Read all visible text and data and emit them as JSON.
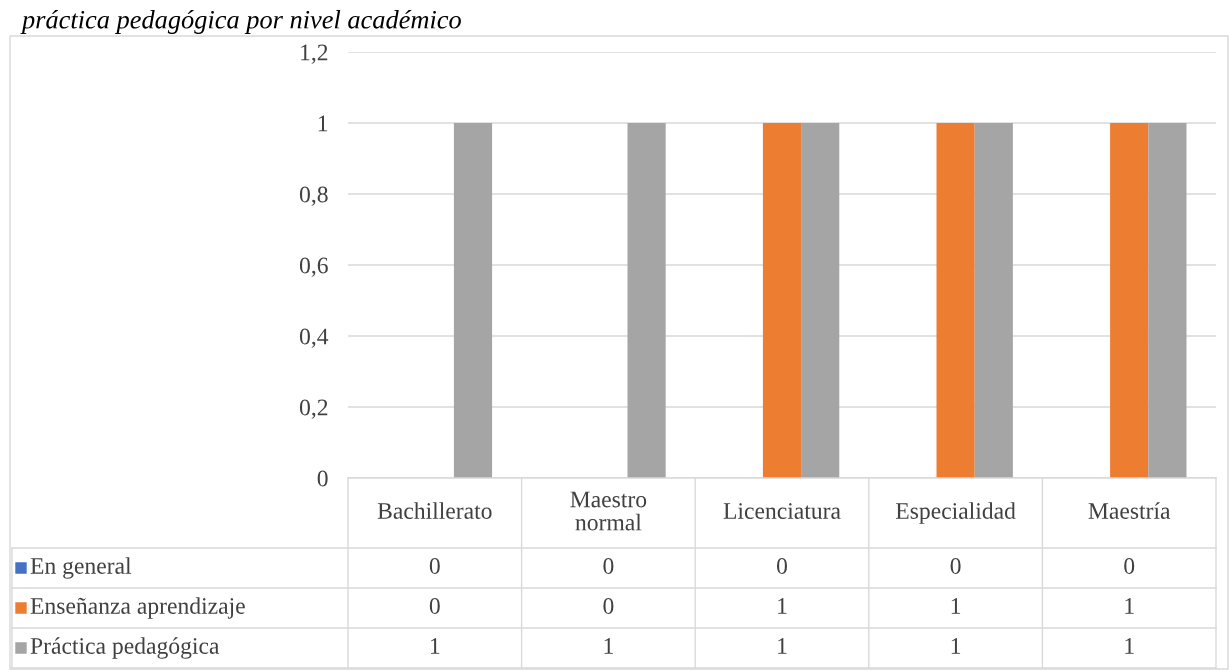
{
  "chart_data": {
    "type": "bar",
    "title": "práctica pedagógica por nivel académico",
    "categories": [
      "Bachillerato",
      "Maestro\nnormal",
      "Licenciatura",
      "Especialidad",
      "Maestría"
    ],
    "series": [
      {
        "name": "En general",
        "color": "#4472c4",
        "values": [
          0,
          0,
          0,
          0,
          0
        ]
      },
      {
        "name": "Enseñanza aprendizaje",
        "color": "#ed7d31",
        "values": [
          0,
          0,
          1,
          1,
          1
        ]
      },
      {
        "name": "Práctica pedagógica",
        "color": "#a5a5a5",
        "values": [
          1,
          1,
          1,
          1,
          1
        ]
      }
    ],
    "ylim": [
      0,
      1.2
    ],
    "yticks": [
      {
        "value": 0,
        "label": "0"
      },
      {
        "value": 0.2,
        "label": "0,2"
      },
      {
        "value": 0.4,
        "label": "0,4"
      },
      {
        "value": 0.6,
        "label": "0,6"
      },
      {
        "value": 0.8,
        "label": "0,8"
      },
      {
        "value": 1,
        "label": "1"
      },
      {
        "value": 1.2,
        "label": "1,2"
      }
    ],
    "grid": "y",
    "legend": "bottom",
    "data_labels": true
  }
}
